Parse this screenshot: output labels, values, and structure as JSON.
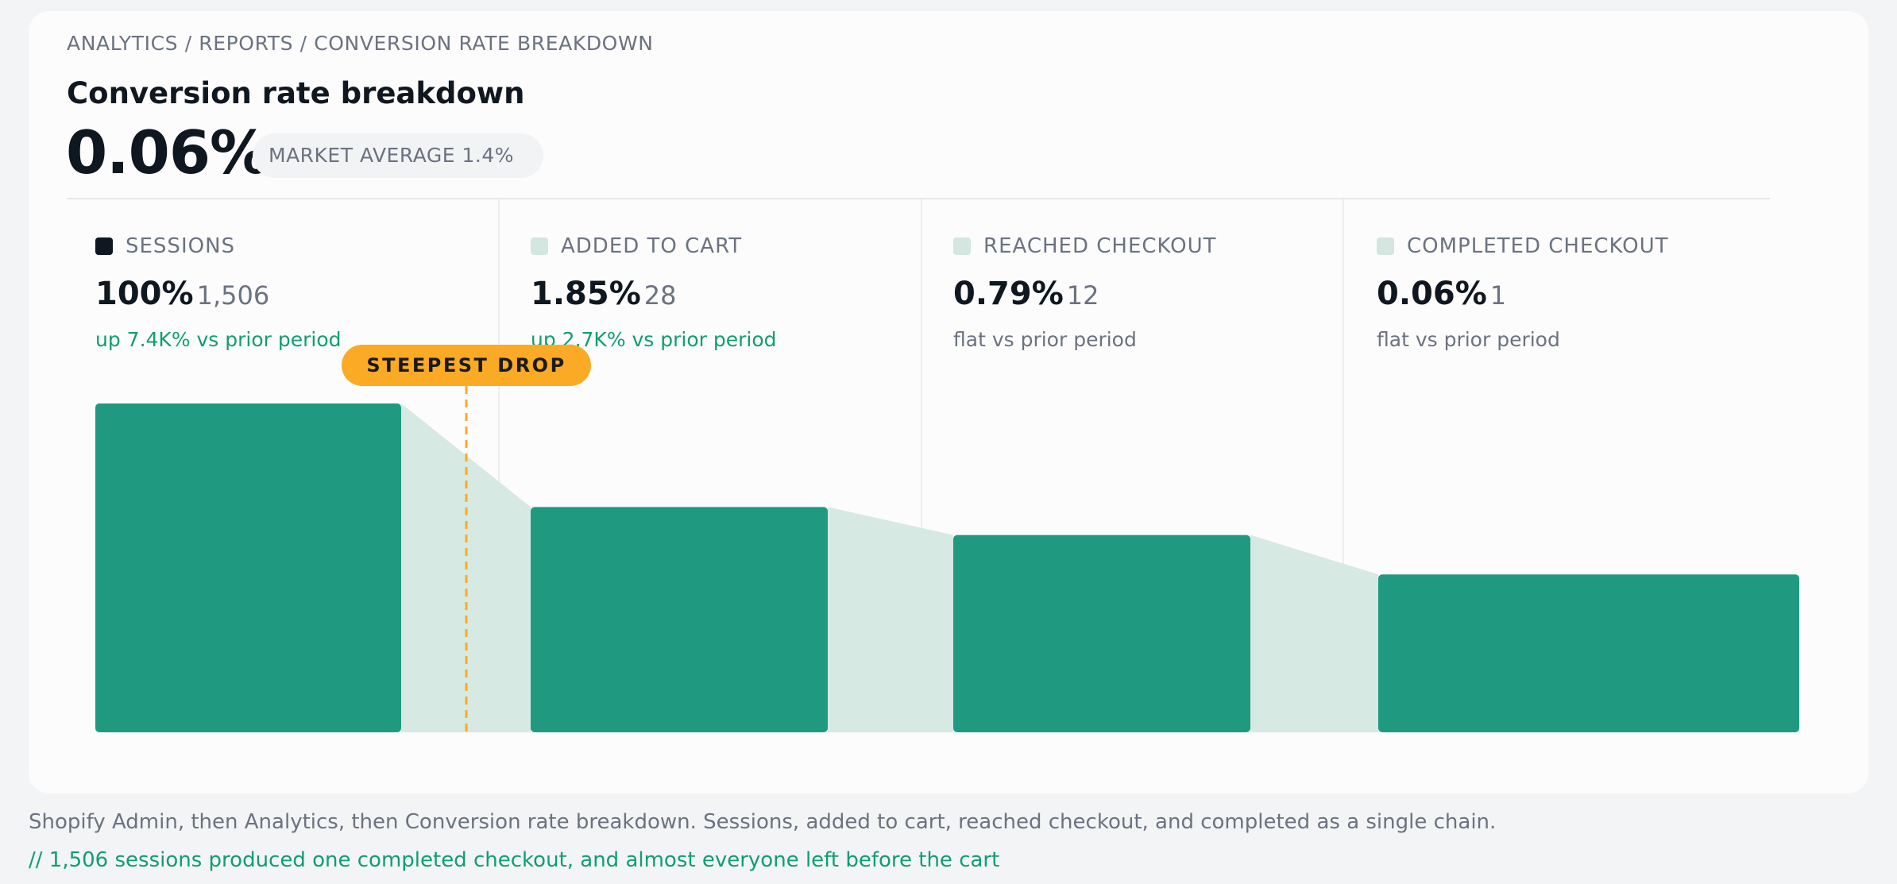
{
  "breadcrumb": "ANALYTICS / REPORTS / CONVERSION RATE BREAKDOWN",
  "page_title": "Conversion rate breakdown",
  "headline_value": "0.06%",
  "market_average": "MARKET AVERAGE 1.4%",
  "colors": {
    "bar": "#1f9a80",
    "connector": "#d6e9e2",
    "badge": "#fbaa26",
    "positive": "#0e9f6e",
    "swatch_active": "#0f1720",
    "swatch_inactive": "#d3e6df"
  },
  "stages": [
    {
      "label": "SESSIONS",
      "percent": "100%",
      "count": "1,506",
      "change": "up 7.4K% vs prior period",
      "trend": "up",
      "active": true
    },
    {
      "label": "ADDED TO CART",
      "percent": "1.85%",
      "count": "28",
      "change": "up 2.7K% vs prior period",
      "trend": "up",
      "active": false
    },
    {
      "label": "REACHED CHECKOUT",
      "percent": "0.79%",
      "count": "12",
      "change": "flat vs prior period",
      "trend": "flat",
      "active": false
    },
    {
      "label": "COMPLETED CHECKOUT",
      "percent": "0.06%",
      "count": "1",
      "change": "flat vs prior period",
      "trend": "flat",
      "active": false
    }
  ],
  "steepest_drop_label": "STEEPEST DROP",
  "chart_data": {
    "type": "bar",
    "categories": [
      "SESSIONS",
      "ADDED TO CART",
      "REACHED CHECKOUT",
      "COMPLETED CHECKOUT"
    ],
    "values": [
      1506,
      28,
      12,
      1
    ],
    "visual_bar_fraction": [
      1.0,
      0.685,
      0.6,
      0.48
    ],
    "steepest_drop_between": [
      "SESSIONS",
      "ADDED TO CART"
    ]
  },
  "caption": "Shopify Admin, then Analytics, then Conversion rate breakdown. Sessions, added to cart, reached checkout, and completed as a single chain.",
  "note": "// 1,506 sessions produced one completed checkout, and almost everyone left before the cart"
}
